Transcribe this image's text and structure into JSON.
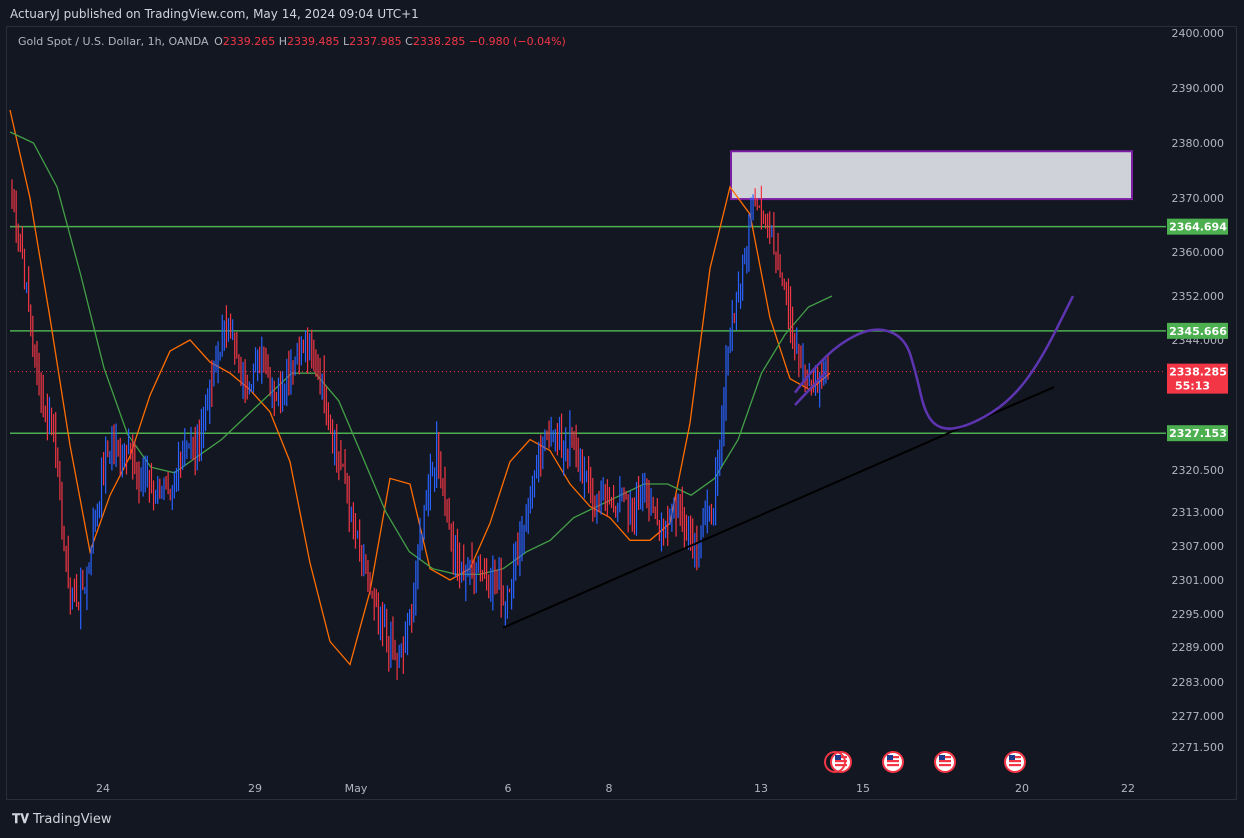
{
  "header": {
    "published": "ActuaryJ published on TradingView.com, May 14, 2024 09:04 UTC+1"
  },
  "legend": {
    "symbol": "Gold Spot / U.S. Dollar, 1h, OANDA",
    "o_label": "O",
    "o": "2339.265",
    "h_label": "H",
    "h": "2339.485",
    "l_label": "L",
    "l": "2337.985",
    "c_label": "C",
    "c": "2338.285",
    "change": "−0.980 (−0.04%)"
  },
  "footer": {
    "brand": "TradingView"
  },
  "colors": {
    "background": "#131722",
    "up_candle": "#2962ff",
    "down_candle": "#f23645",
    "ema_fast": "#ff6d00",
    "ema_slow": "#43a047",
    "level_line": "#4caf50",
    "zone_border": "#7b1fa2",
    "zone_fill": "#e1e3ea",
    "projection": "#5e35b1",
    "trendline": "#000000",
    "current_price": "#f23645"
  },
  "chart_data": {
    "type": "candlestick",
    "symbol": "Gold Spot / U.S. Dollar",
    "interval": "1h",
    "y_axis": {
      "ticks": [
        "2400.000",
        "2390.000",
        "2380.000",
        "2370.000",
        "2360.000",
        "2352.000",
        "2344.000",
        "2320.500",
        "2313.000",
        "2307.000",
        "2301.000",
        "2295.000",
        "2289.000",
        "2283.000",
        "2277.000",
        "2271.500"
      ],
      "tick_values": [
        2400,
        2390,
        2380,
        2370,
        2360,
        2352,
        2344,
        2320.5,
        2313,
        2307,
        2301,
        2295,
        2289,
        2283,
        2277,
        2271.5
      ],
      "ylim": [
        2268,
        2402
      ]
    },
    "x_axis": {
      "ticks": [
        "24",
        "29",
        "May",
        "6",
        "8",
        "13",
        "15",
        "20",
        "22"
      ]
    },
    "horizontal_levels": [
      {
        "label": "2364.694",
        "value": 2364.694
      },
      {
        "label": "2345.666",
        "value": 2345.666
      },
      {
        "label": "2327.153",
        "value": 2327.153
      }
    ],
    "current_price": {
      "label": "2338.285",
      "value": 2338.285,
      "countdown": "55:13"
    },
    "resistance_zone": {
      "top": 2378.5,
      "bottom": 2369.8
    },
    "trendline_support": {
      "start_price": 2292.5,
      "end_price": 2335.5
    },
    "projection_path_prices": [
      2334.5,
      2338.5,
      2343.5,
      2346.5,
      2344.5,
      2338,
      2330,
      2327.5,
      2329,
      2333,
      2340,
      2352
    ],
    "ema_fast_anchor_prices": [
      2386,
      2370,
      2348,
      2325,
      2306,
      2316,
      2323,
      2334,
      2342,
      2344,
      2340,
      2338,
      2335,
      2331,
      2322,
      2304,
      2290,
      2286,
      2299,
      2319,
      2318,
      2303,
      2301,
      2303,
      2311,
      2322,
      2326,
      2324,
      2318,
      2314,
      2312,
      2308,
      2308,
      2311,
      2329,
      2357,
      2372,
      2367,
      2348,
      2337,
      2335,
      2338
    ],
    "ema_slow_anchor_prices": [
      2382,
      2380,
      2372,
      2356,
      2339,
      2327,
      2321,
      2320,
      2323,
      2326,
      2330,
      2334,
      2338,
      2338,
      2333,
      2323,
      2313,
      2306,
      2303,
      2302,
      2302,
      2303,
      2306,
      2308,
      2312,
      2314,
      2316,
      2318,
      2318,
      2316,
      2319,
      2326,
      2338,
      2345,
      2350,
      2352
    ],
    "candle_closes": [
      2370,
      2362,
      2350,
      2338,
      2330,
      2330,
      2310,
      2299,
      2297,
      2302,
      2313,
      2320,
      2326,
      2322,
      2326,
      2318,
      2320,
      2316,
      2318,
      2314,
      2322,
      2326,
      2324,
      2330,
      2336,
      2343,
      2348,
      2340,
      2336,
      2338,
      2342,
      2336,
      2334,
      2339,
      2341,
      2343,
      2340,
      2338,
      2330,
      2324,
      2318,
      2310,
      2304,
      2299,
      2294,
      2291,
      2287,
      2288,
      2296,
      2308,
      2318,
      2324,
      2316,
      2306,
      2302,
      2303,
      2305,
      2300,
      2302,
      2297,
      2302,
      2308,
      2314,
      2320,
      2326,
      2328,
      2324,
      2326,
      2322,
      2318,
      2314,
      2316,
      2314,
      2316,
      2313,
      2314,
      2318,
      2312,
      2310,
      2312,
      2314,
      2310,
      2307,
      2311,
      2313,
      2322,
      2344,
      2352,
      2358,
      2372,
      2368,
      2364,
      2359,
      2353,
      2343,
      2338,
      2335,
      2337,
      2338
    ]
  }
}
